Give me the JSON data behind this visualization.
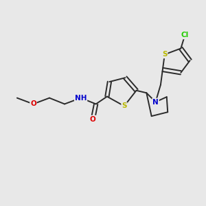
{
  "bg_color": "#e8e8e8",
  "bond_color": "#2a2a2a",
  "bond_width": 1.4,
  "atom_colors": {
    "S": "#b8b800",
    "O": "#dd0000",
    "N": "#0000cc",
    "Cl": "#22cc00",
    "C": "#2a2a2a",
    "H": "#2a2a2a"
  },
  "font_size": 7.5,
  "fig_size": [
    3.0,
    3.0
  ],
  "dpi": 100
}
